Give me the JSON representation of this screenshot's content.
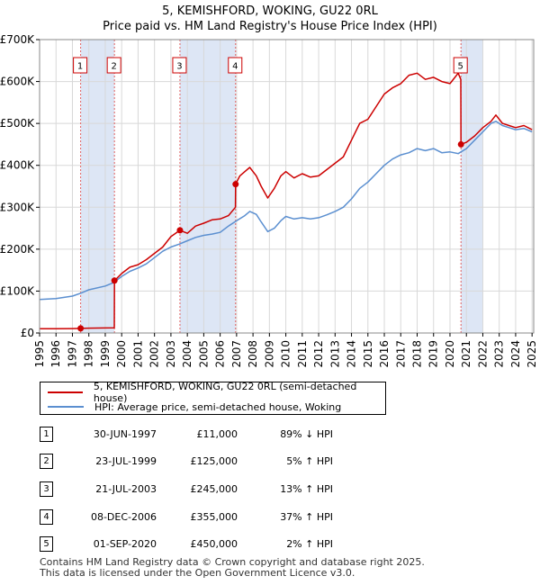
{
  "header": {
    "title_line1": "5, KEMISHFORD, WOKING, GU22 0RL",
    "title_line2": "Price paid vs. HM Land Registry's House Price Index (HPI)"
  },
  "colors": {
    "property": "#cc0000",
    "hpi": "#5b8fd0",
    "shade": "#dde6f5",
    "grid": "#d8d8d8",
    "marker_line": "#e06060"
  },
  "chart_data": {
    "type": "line",
    "title": "Price paid vs. HM Land Registry's House Price Index (HPI)",
    "xlim": [
      1995,
      2025.1
    ],
    "ylim": [
      0,
      700000
    ],
    "y_ticks": [
      0,
      100000,
      200000,
      300000,
      400000,
      500000,
      600000,
      700000
    ],
    "y_tick_labels": [
      "£0",
      "£100K",
      "£200K",
      "£300K",
      "£400K",
      "£500K",
      "£600K",
      "£700K"
    ],
    "x_ticks": [
      1995,
      1996,
      1997,
      1998,
      1999,
      2000,
      2001,
      2002,
      2003,
      2004,
      2005,
      2006,
      2007,
      2008,
      2009,
      2010,
      2011,
      2012,
      2013,
      2014,
      2015,
      2016,
      2017,
      2018,
      2019,
      2020,
      2021,
      2022,
      2023,
      2024,
      2025
    ],
    "x_tick_labels": [
      "1995",
      "1996",
      "1997",
      "1998",
      "1999",
      "2000",
      "2001",
      "2002",
      "2003",
      "2004",
      "2005",
      "2006",
      "2007",
      "2008",
      "2009",
      "2010",
      "2011",
      "2012",
      "2013",
      "2014",
      "2015",
      "2016",
      "2017",
      "2018",
      "2019",
      "2020",
      "2021",
      "2022",
      "2023",
      "2024",
      "2025"
    ],
    "shaded_ranges": [
      [
        1997.5,
        1999.56
      ],
      [
        2003.55,
        2006.94
      ],
      [
        2020.67,
        2022.0
      ]
    ],
    "series": [
      {
        "name": "5, KEMISHFORD, WOKING, GU22 0RL (semi-detached house)",
        "x": [
          1995.0,
          1996.0,
          1997.0,
          1997.49,
          1997.5,
          1998.0,
          1999.0,
          1999.55,
          1999.56,
          2000.0,
          2000.5,
          2001.0,
          2001.5,
          2002.0,
          2002.5,
          2003.0,
          2003.55,
          2004.0,
          2004.5,
          2005.0,
          2005.5,
          2006.0,
          2006.5,
          2006.93,
          2006.94,
          2007.2,
          2007.5,
          2007.8,
          2008.2,
          2008.5,
          2008.9,
          2009.3,
          2009.7,
          2010.0,
          2010.5,
          2011.0,
          2011.5,
          2012.0,
          2012.5,
          2013.0,
          2013.5,
          2014.0,
          2014.5,
          2015.0,
          2015.5,
          2016.0,
          2016.5,
          2017.0,
          2017.5,
          2018.0,
          2018.5,
          2019.0,
          2019.5,
          2020.0,
          2020.3,
          2020.5,
          2020.66,
          2020.67,
          2021.0,
          2021.5,
          2022.0,
          2022.5,
          2022.8,
          2023.2,
          2023.6,
          2024.0,
          2024.5,
          2025.0
        ],
        "y": [
          10000,
          10000,
          10500,
          11000,
          11000,
          11500,
          12000,
          12500,
          125000,
          142000,
          157000,
          163000,
          175000,
          190000,
          205000,
          230000,
          245000,
          238000,
          255000,
          262000,
          270000,
          272000,
          280000,
          300000,
          355000,
          375000,
          385000,
          395000,
          375000,
          350000,
          322000,
          345000,
          375000,
          385000,
          370000,
          380000,
          372000,
          375000,
          390000,
          405000,
          420000,
          460000,
          500000,
          510000,
          540000,
          570000,
          585000,
          595000,
          615000,
          620000,
          605000,
          610000,
          600000,
          595000,
          610000,
          620000,
          605000,
          450000,
          455000,
          470000,
          490000,
          505000,
          520000,
          500000,
          495000,
          490000,
          495000,
          485000
        ]
      },
      {
        "name": "HPI: Average price, semi-detached house, Woking",
        "x": [
          1995.0,
          1996.0,
          1997.0,
          1997.5,
          1998.0,
          1999.0,
          1999.5,
          2000.0,
          2000.5,
          2001.0,
          2001.5,
          2002.0,
          2002.5,
          2003.0,
          2003.5,
          2004.0,
          2004.5,
          2005.0,
          2005.5,
          2006.0,
          2006.5,
          2007.0,
          2007.5,
          2007.8,
          2008.2,
          2008.5,
          2008.9,
          2009.3,
          2009.7,
          2010.0,
          2010.5,
          2011.0,
          2011.5,
          2012.0,
          2012.5,
          2013.0,
          2013.5,
          2014.0,
          2014.5,
          2015.0,
          2015.5,
          2016.0,
          2016.5,
          2017.0,
          2017.5,
          2018.0,
          2018.5,
          2019.0,
          2019.5,
          2020.0,
          2020.5,
          2021.0,
          2021.5,
          2022.0,
          2022.5,
          2022.8,
          2023.2,
          2023.6,
          2024.0,
          2024.5,
          2025.0
        ],
        "y": [
          80000,
          82000,
          88000,
          95000,
          103000,
          112000,
          120000,
          135000,
          147000,
          155000,
          165000,
          180000,
          195000,
          205000,
          212000,
          220000,
          228000,
          233000,
          236000,
          240000,
          255000,
          268000,
          280000,
          290000,
          283000,
          265000,
          242000,
          250000,
          268000,
          278000,
          272000,
          275000,
          272000,
          275000,
          282000,
          290000,
          300000,
          320000,
          345000,
          360000,
          380000,
          400000,
          415000,
          425000,
          430000,
          440000,
          435000,
          440000,
          430000,
          432000,
          428000,
          440000,
          460000,
          480000,
          500000,
          505000,
          495000,
          490000,
          485000,
          488000,
          480000
        ]
      }
    ],
    "sales": [
      {
        "label": "1",
        "x": 1997.5,
        "y": 11000
      },
      {
        "label": "2",
        "x": 1999.56,
        "y": 125000
      },
      {
        "label": "3",
        "x": 2003.55,
        "y": 245000
      },
      {
        "label": "4",
        "x": 2006.94,
        "y": 355000
      },
      {
        "label": "5",
        "x": 2020.67,
        "y": 450000
      }
    ]
  },
  "legend": {
    "property_label": "5, KEMISHFORD, WOKING, GU22 0RL (semi-detached house)",
    "hpi_label": "HPI: Average price, semi-detached house, Woking"
  },
  "sales_table": [
    {
      "num": "1",
      "date": "30-JUN-1997",
      "price": "£11,000",
      "hpi": "89% ↓ HPI"
    },
    {
      "num": "2",
      "date": "23-JUL-1999",
      "price": "£125,000",
      "hpi": "5% ↑ HPI"
    },
    {
      "num": "3",
      "date": "21-JUL-2003",
      "price": "£245,000",
      "hpi": "13% ↑ HPI"
    },
    {
      "num": "4",
      "date": "08-DEC-2006",
      "price": "£355,000",
      "hpi": "37% ↑ HPI"
    },
    {
      "num": "5",
      "date": "01-SEP-2020",
      "price": "£450,000",
      "hpi": "2% ↑ HPI"
    }
  ],
  "footer": {
    "line1": "Contains HM Land Registry data © Crown copyright and database right 2025.",
    "line2": "This data is licensed under the Open Government Licence v3.0."
  }
}
